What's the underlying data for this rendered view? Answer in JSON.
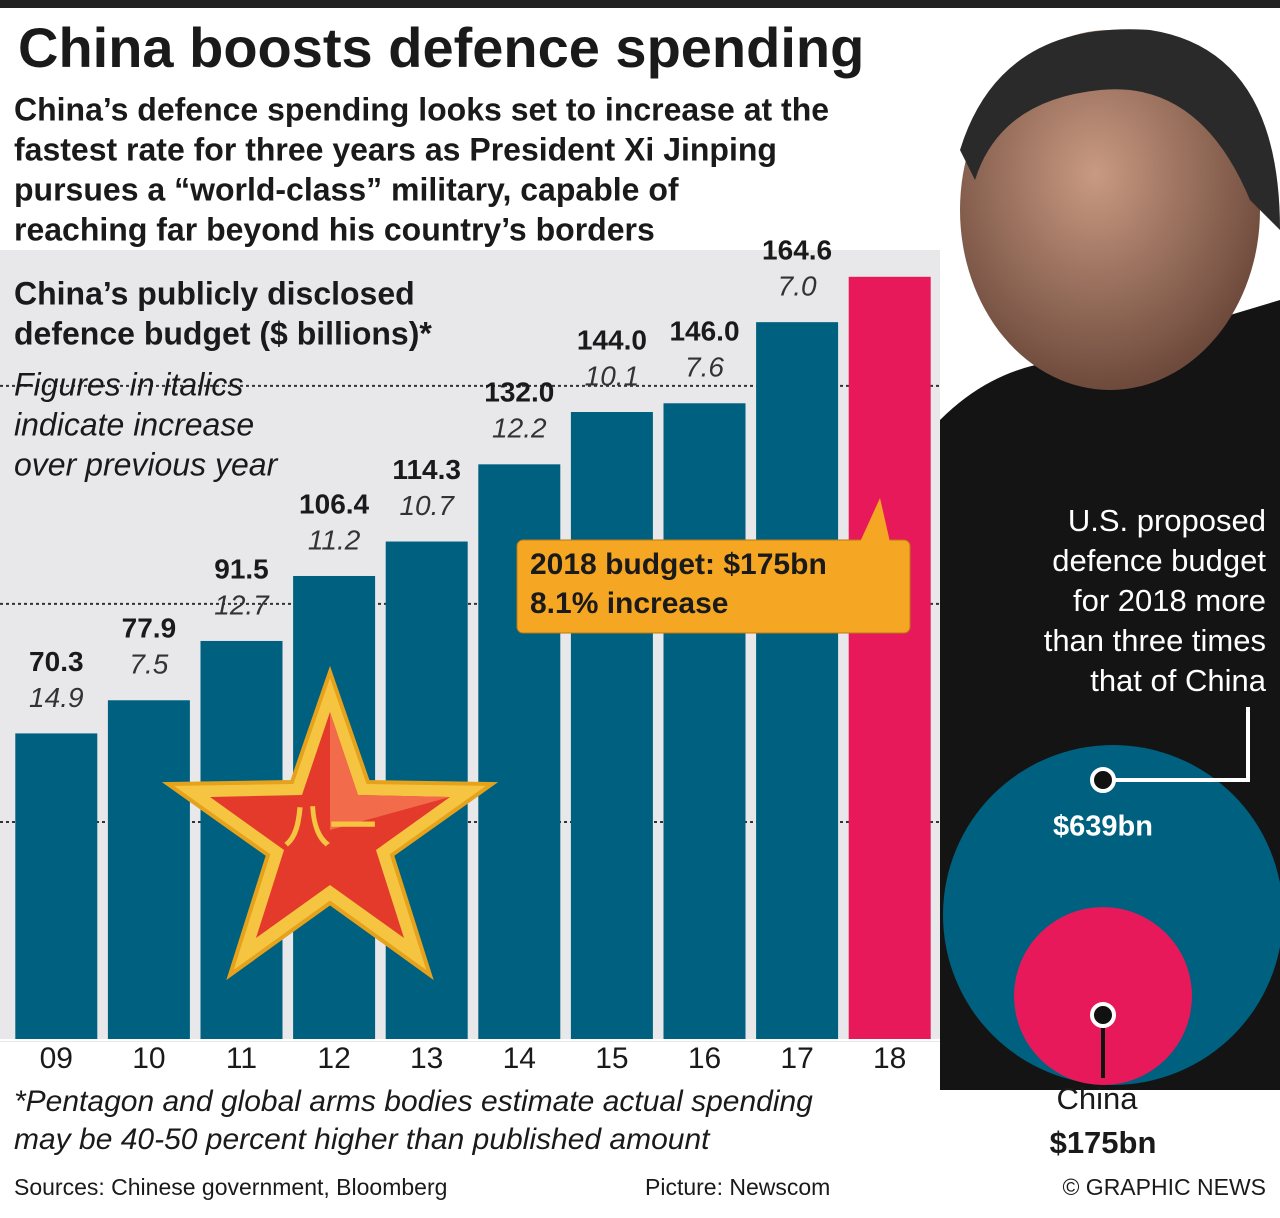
{
  "chart_data": [
    {
      "type": "bar",
      "title": "China boosts defence spending",
      "subtitle": [
        "China’s defence spending looks set to increase at the",
        "fastest rate for three years as President Xi Jinping",
        "pursues a “world-class” military, capable of",
        "reaching far beyond his country’s borders"
      ],
      "chart_title": [
        "China’s publicly disclosed",
        "defence budget ($ billions)*"
      ],
      "note": [
        "Figures in italics",
        "indicate increase",
        "over previous year"
      ],
      "categories": [
        "09",
        "10",
        "11",
        "12",
        "13",
        "14",
        "15",
        "16",
        "17",
        "18"
      ],
      "values": [
        70.3,
        77.9,
        91.5,
        106.4,
        114.3,
        132.0,
        144.0,
        146.0,
        164.6,
        175
      ],
      "value_labels": [
        "70.3",
        "77.9",
        "91.5",
        "106.4",
        "114.3",
        "132.0",
        "144.0",
        "146.0",
        "164.6",
        null
      ],
      "increases": [
        "14.9",
        "7.5",
        "12.7",
        "11.2",
        "10.7",
        "12.2",
        "10.1",
        "7.6",
        "7.0",
        null
      ],
      "colors": [
        "#00607f",
        "#00607f",
        "#00607f",
        "#00607f",
        "#00607f",
        "#00607f",
        "#00607f",
        "#00607f",
        "#00607f",
        "#e8195a"
      ],
      "ylim": [
        0,
        180
      ],
      "yticks": [
        50,
        100,
        150
      ],
      "annotation": [
        "2018 budget: $175bn",
        "8.1% increase"
      ],
      "footnote": [
        "*Pentagon and global arms bodies estimate actual spending",
        "may be 40-50 percent higher than published amount"
      ],
      "source": "Sources: Chinese government, Bloomberg",
      "credit": "Picture: Newscom",
      "copyright": "© GRAPHIC NEWS"
    },
    {
      "type": "circles",
      "description": [
        "U.S. proposed",
        "defence budget",
        "for 2018 more",
        "than three times",
        "that of China"
      ],
      "categories": [
        null,
        "China"
      ],
      "values": [
        639,
        175
      ],
      "value_labels": [
        "$639bn",
        "$175bn"
      ],
      "colors": [
        "#00607f",
        "#e8195a"
      ]
    }
  ]
}
